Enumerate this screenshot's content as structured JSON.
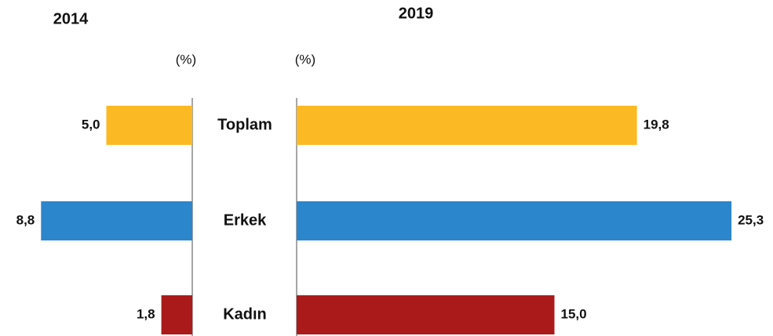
{
  "chart_data": [
    {
      "type": "bar",
      "orientation": "horizontal",
      "direction": "left",
      "title": "2014",
      "unit_label": "(%)",
      "categories": [
        "Toplam",
        "Erkek",
        "Kadın"
      ],
      "values": [
        5.0,
        8.8,
        1.8
      ],
      "value_labels": [
        "5,0",
        "8,8",
        "1,8"
      ],
      "colors": [
        "#fbb923",
        "#2b86cb",
        "#ab1a1a"
      ]
    },
    {
      "type": "bar",
      "orientation": "horizontal",
      "direction": "right",
      "title": "2019",
      "unit_label": "(%)",
      "values": [
        19.8,
        25.3,
        15.0
      ],
      "value_labels": [
        "19,8",
        "25,3",
        "15,0"
      ],
      "colors": [
        "#fbb923",
        "#2b86cb",
        "#ab1a1a"
      ]
    }
  ]
}
